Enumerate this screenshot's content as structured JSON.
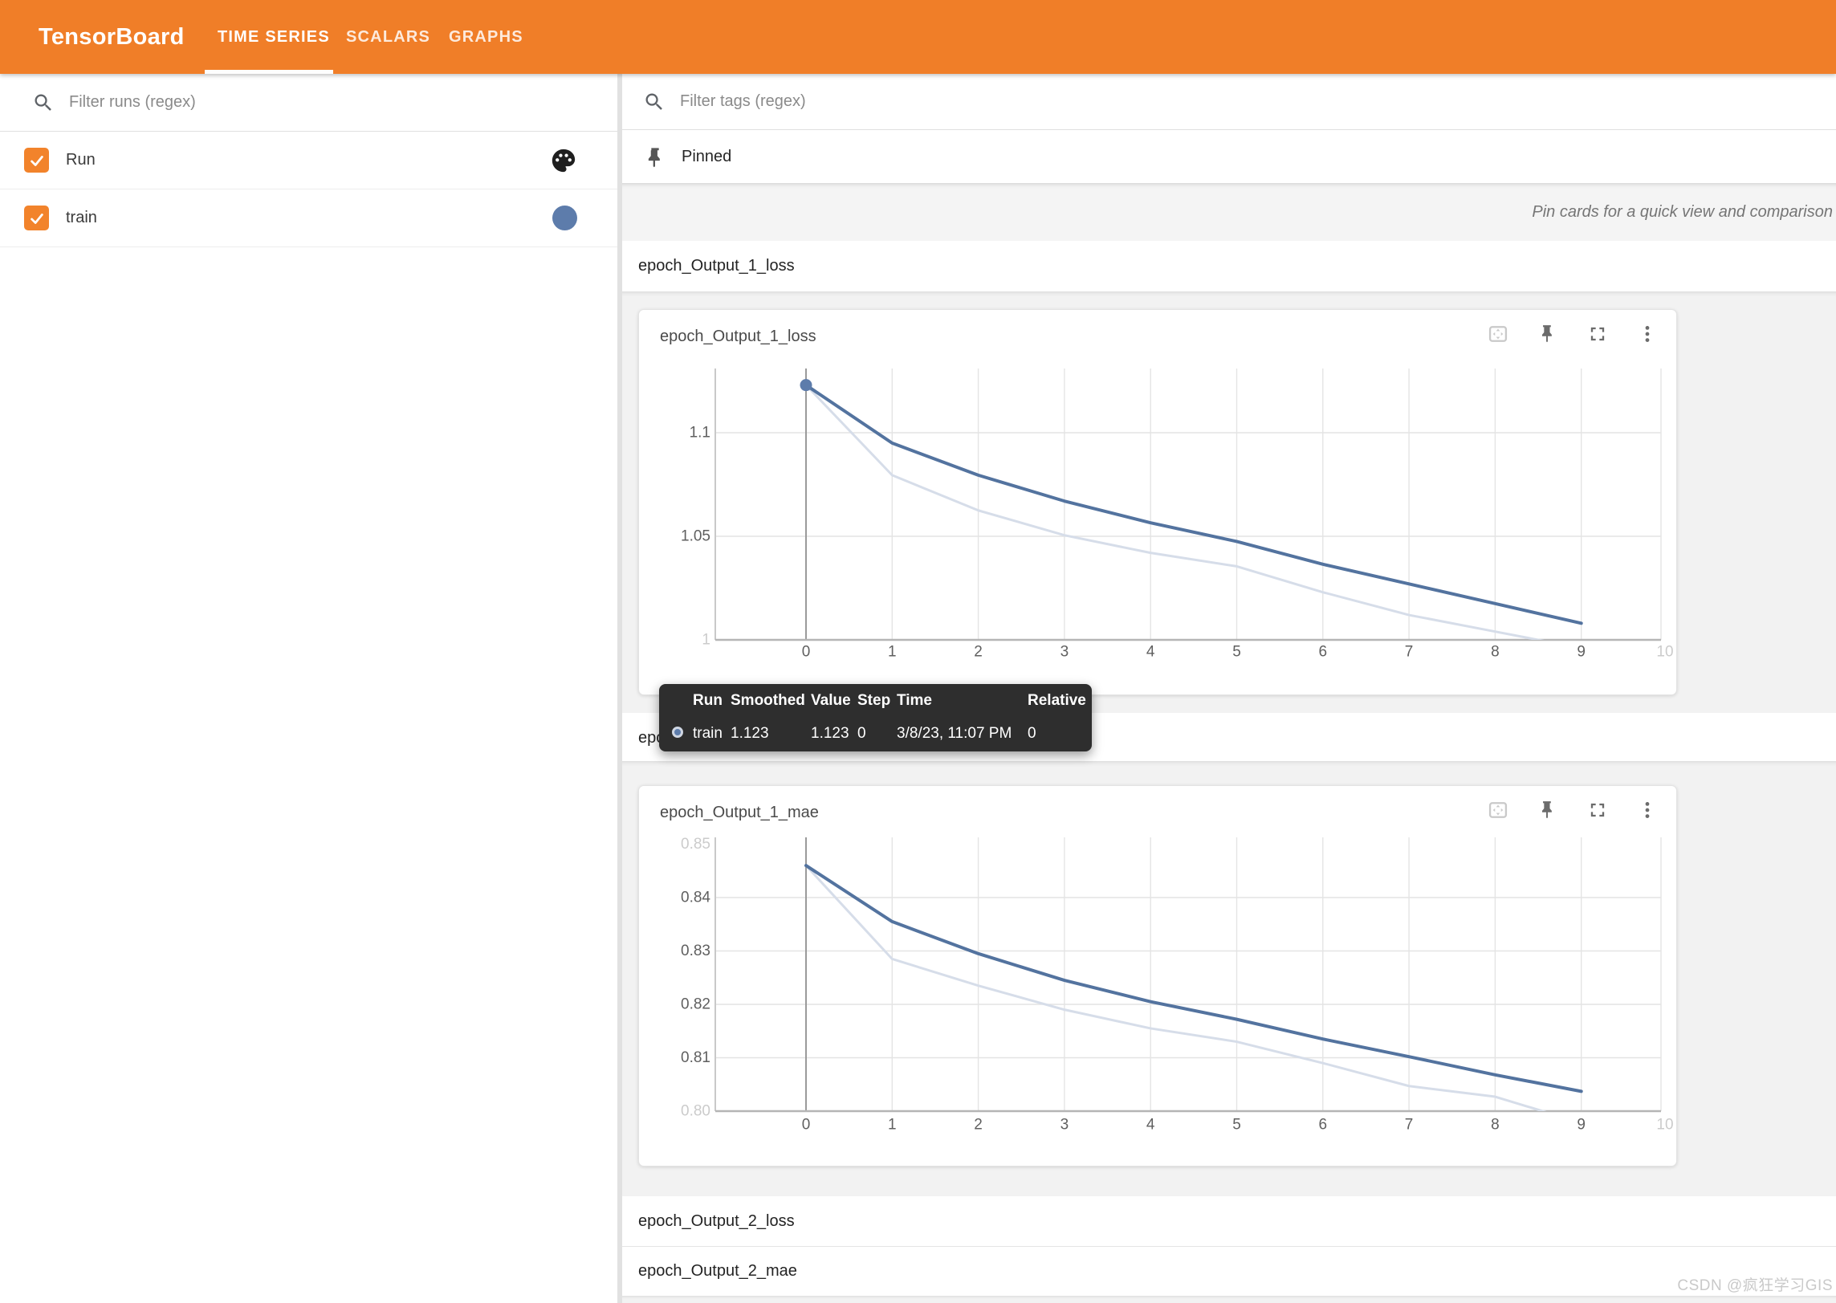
{
  "header": {
    "logo": "TensorBoard",
    "tabs": [
      {
        "label": "TIME SERIES",
        "active": true
      },
      {
        "label": "SCALARS",
        "active": false
      },
      {
        "label": "GRAPHS",
        "active": false
      }
    ],
    "accent_color": "#f07e28"
  },
  "sidebar": {
    "filter_placeholder": "Filter runs (regex)",
    "runs": [
      {
        "label": "Run",
        "checked": true,
        "indicator": "palette-icon"
      },
      {
        "label": "train",
        "checked": true,
        "indicator": "color-dot",
        "color": "#5d7cab"
      }
    ]
  },
  "main": {
    "filter_placeholder": "Filter tags (regex)",
    "pinned_label": "Pinned",
    "pin_hint": "Pin cards for a quick view and comparison",
    "sections": [
      {
        "label": "epoch_Output_1_loss"
      },
      {
        "label": "epoch_Output_1_mae"
      },
      {
        "label": "epoch_Output_2_loss"
      },
      {
        "label": "epoch_Output_2_mae"
      }
    ]
  },
  "tooltip": {
    "headers": [
      "Run",
      "Smoothed",
      "Value",
      "Step",
      "Time",
      "Relative"
    ],
    "row": {
      "run": "train",
      "smoothed": "1.123",
      "value": "1.123",
      "step": "0",
      "time": "3/8/23, 11:07 PM",
      "relative": "0",
      "color": "#5d7cab"
    }
  },
  "watermark": "CSDN @疯狂学习GIS",
  "chart_data": [
    {
      "type": "line",
      "title": "epoch_Output_1_loss",
      "x": [
        0,
        1,
        2,
        3,
        4,
        5,
        6,
        7,
        8,
        9
      ],
      "series": [
        {
          "name": "train",
          "role": "raw",
          "color": "#d6dde9",
          "values": [
            1.123,
            1.0795,
            1.0625,
            1.0505,
            1.042,
            1.0355,
            1.023,
            1.012,
            1.004,
            0.996
          ]
        },
        {
          "name": "train (smoothed)",
          "role": "smoothed",
          "color": "#53739f",
          "values": [
            1.123,
            1.095,
            1.0795,
            1.067,
            1.0565,
            1.0475,
            1.0365,
            1.027,
            1.0175,
            1.008
          ]
        }
      ],
      "marker": {
        "x": 0,
        "value": 1.123
      },
      "ylim": [
        1.0,
        1.13
      ],
      "xlim": [
        -1.05,
        10.45
      ],
      "grid": true,
      "legend": "none",
      "yticks": [
        {
          "value": 1.1,
          "label": "1.1"
        },
        {
          "value": 1.05,
          "label": "1.05"
        },
        {
          "value": 1.0,
          "label": "1",
          "faint": true,
          "noline": true
        }
      ],
      "xticks": [
        {
          "value": 0,
          "label": "0"
        },
        {
          "value": 1,
          "label": "1"
        },
        {
          "value": 2,
          "label": "2"
        },
        {
          "value": 3,
          "label": "3"
        },
        {
          "value": 4,
          "label": "4"
        },
        {
          "value": 5,
          "label": "5"
        },
        {
          "value": 6,
          "label": "6"
        },
        {
          "value": 7,
          "label": "7"
        },
        {
          "value": 8,
          "label": "8"
        },
        {
          "value": 9,
          "label": "9"
        },
        {
          "value": 10,
          "label": "10",
          "faint": true
        }
      ]
    },
    {
      "type": "line",
      "title": "epoch_Output_1_mae",
      "x": [
        0,
        1,
        2,
        3,
        4,
        5,
        6,
        7,
        8,
        9
      ],
      "series": [
        {
          "name": "train",
          "role": "raw",
          "color": "#d6dde9",
          "values": [
            0.846,
            0.8285,
            0.8235,
            0.819,
            0.8155,
            0.813,
            0.809,
            0.8047,
            0.8027,
            0.7978
          ]
        },
        {
          "name": "train (smoothed)",
          "role": "smoothed",
          "color": "#53739f",
          "values": [
            0.846,
            0.8355,
            0.8295,
            0.8245,
            0.8205,
            0.8172,
            0.8135,
            0.8102,
            0.8068,
            0.8037
          ]
        }
      ],
      "ylim": [
        0.8,
        0.851
      ],
      "xlim": [
        -1.05,
        10.45
      ],
      "grid": true,
      "legend": "none",
      "yticks": [
        {
          "value": 0.85,
          "label": "0.85",
          "faint": true,
          "noline": true
        },
        {
          "value": 0.84,
          "label": "0.84"
        },
        {
          "value": 0.83,
          "label": "0.83"
        },
        {
          "value": 0.82,
          "label": "0.82"
        },
        {
          "value": 0.81,
          "label": "0.81"
        },
        {
          "value": 0.8,
          "label": "0.80",
          "faint": true,
          "noline": true
        }
      ],
      "xticks": [
        {
          "value": 0,
          "label": "0"
        },
        {
          "value": 1,
          "label": "1"
        },
        {
          "value": 2,
          "label": "2"
        },
        {
          "value": 3,
          "label": "3"
        },
        {
          "value": 4,
          "label": "4"
        },
        {
          "value": 5,
          "label": "5"
        },
        {
          "value": 6,
          "label": "6"
        },
        {
          "value": 7,
          "label": "7"
        },
        {
          "value": 8,
          "label": "8"
        },
        {
          "value": 9,
          "label": "9"
        },
        {
          "value": 10,
          "label": "10",
          "faint": true
        }
      ]
    }
  ]
}
